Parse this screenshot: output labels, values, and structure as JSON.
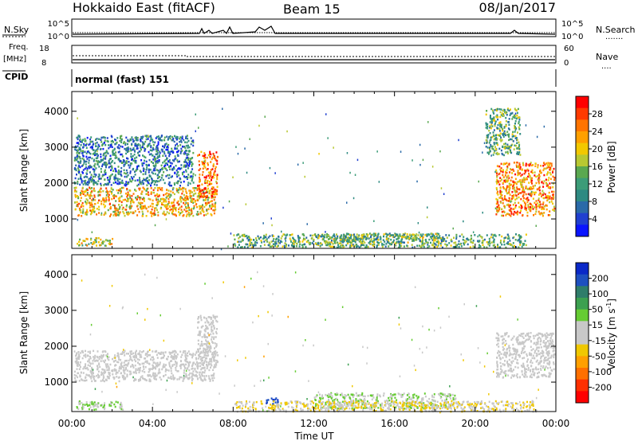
{
  "header": {
    "title": "Hokkaido East (fitACF)",
    "beam": "Beam 15",
    "date": "08/Jan/2017"
  },
  "top_panels": {
    "nsky": {
      "label": "N.Sky",
      "tick_hi": "10^5",
      "tick_lo": "10^0",
      "right_label": "N.Search",
      "right_dots": "......."
    },
    "freq": {
      "label_1": "Freq.",
      "label_2": "[MHz]",
      "left_hi": "18",
      "left_lo": "8",
      "right_hi": "60",
      "right_lo": "0",
      "right_label": "Nave",
      "right_dots": "...."
    },
    "cpid": {
      "label": "CPID",
      "text": "normal (fast) 151"
    }
  },
  "xaxis": {
    "ticks": [
      "00:00",
      "04:00",
      "08:00",
      "12:00",
      "16:00",
      "20:00",
      "00:00"
    ],
    "label": "Time UT"
  },
  "power_colorbar": {
    "label": "Power [dB]",
    "ticks": [
      "28",
      "24",
      "20",
      "16",
      "12",
      "8",
      "4"
    ],
    "colors": [
      "#ff0000",
      "#ff3a00",
      "#ff7400",
      "#ffa000",
      "#f2c800",
      "#b8c832",
      "#5aa850",
      "#3c9c78",
      "#2e8a82",
      "#2a6aa8",
      "#2040d0",
      "#0a14ff"
    ]
  },
  "velocity_colorbar": {
    "label": "Velocity [m s^-1]",
    "label_main": "Velocity [m s",
    "label_sup": "-1",
    "label_end": "]",
    "ticks": [
      "200",
      "100",
      "50",
      "15",
      "-15",
      "-50",
      "-100",
      "-200"
    ],
    "colors": [
      "#0a28c8",
      "#1e50c0",
      "#2f7d6a",
      "#3ca050",
      "#66cc33",
      "#c8c8c8",
      "#c8c8c8",
      "#f0c800",
      "#ffa000",
      "#ff7000",
      "#ff3000",
      "#ff0000"
    ]
  },
  "chart_data": [
    {
      "type": "heatmap",
      "name": "power",
      "ylabel": "Slant Range [km]",
      "yticks": [
        1000,
        2000,
        3000,
        4000
      ],
      "ylim": [
        180,
        4550
      ],
      "xlim_hours": [
        0,
        24
      ],
      "regions": [
        {
          "x": [
            0.1,
            7.1
          ],
          "y": [
            1100,
            1900
          ],
          "value": 22
        },
        {
          "x": [
            6.2,
            7.2
          ],
          "y": [
            1600,
            2900
          ],
          "value": 26
        },
        {
          "x": [
            0.1,
            6.0
          ],
          "y": [
            1950,
            3350
          ],
          "value": 10
        },
        {
          "x": [
            0.2,
            2.0
          ],
          "y": [
            280,
            500
          ],
          "value": 18
        },
        {
          "x": [
            12.0,
            18.5
          ],
          "y": [
            330,
            620
          ],
          "value": 16
        },
        {
          "x": [
            8.0,
            22.5
          ],
          "y": [
            230,
            600
          ],
          "value": 14
        },
        {
          "x": [
            21.0,
            23.9
          ],
          "y": [
            1100,
            2600
          ],
          "value": 24
        },
        {
          "x": [
            20.5,
            22.2
          ],
          "y": [
            2800,
            4100
          ],
          "value": 14
        }
      ]
    },
    {
      "type": "heatmap",
      "name": "velocity",
      "ylabel": "Slant Range [km]",
      "yticks": [
        1000,
        2000,
        3000,
        4000
      ],
      "ylim": [
        180,
        4550
      ],
      "xlim_hours": [
        0,
        24
      ],
      "regions": [
        {
          "x": [
            0.1,
            7.1
          ],
          "y": [
            1050,
            1900
          ],
          "value": 0
        },
        {
          "x": [
            6.2,
            7.2
          ],
          "y": [
            1500,
            2900
          ],
          "value": 0
        },
        {
          "x": [
            0.2,
            2.5
          ],
          "y": [
            250,
            500
          ],
          "value": 40
        },
        {
          "x": [
            12.0,
            19.0
          ],
          "y": [
            280,
            720
          ],
          "value": 40
        },
        {
          "x": [
            9.6,
            10.2
          ],
          "y": [
            400,
            600
          ],
          "value": 200
        },
        {
          "x": [
            8.0,
            23.0
          ],
          "y": [
            200,
            500
          ],
          "value": -40
        },
        {
          "x": [
            21.0,
            23.9
          ],
          "y": [
            1150,
            2400
          ],
          "value": 0
        }
      ]
    }
  ]
}
